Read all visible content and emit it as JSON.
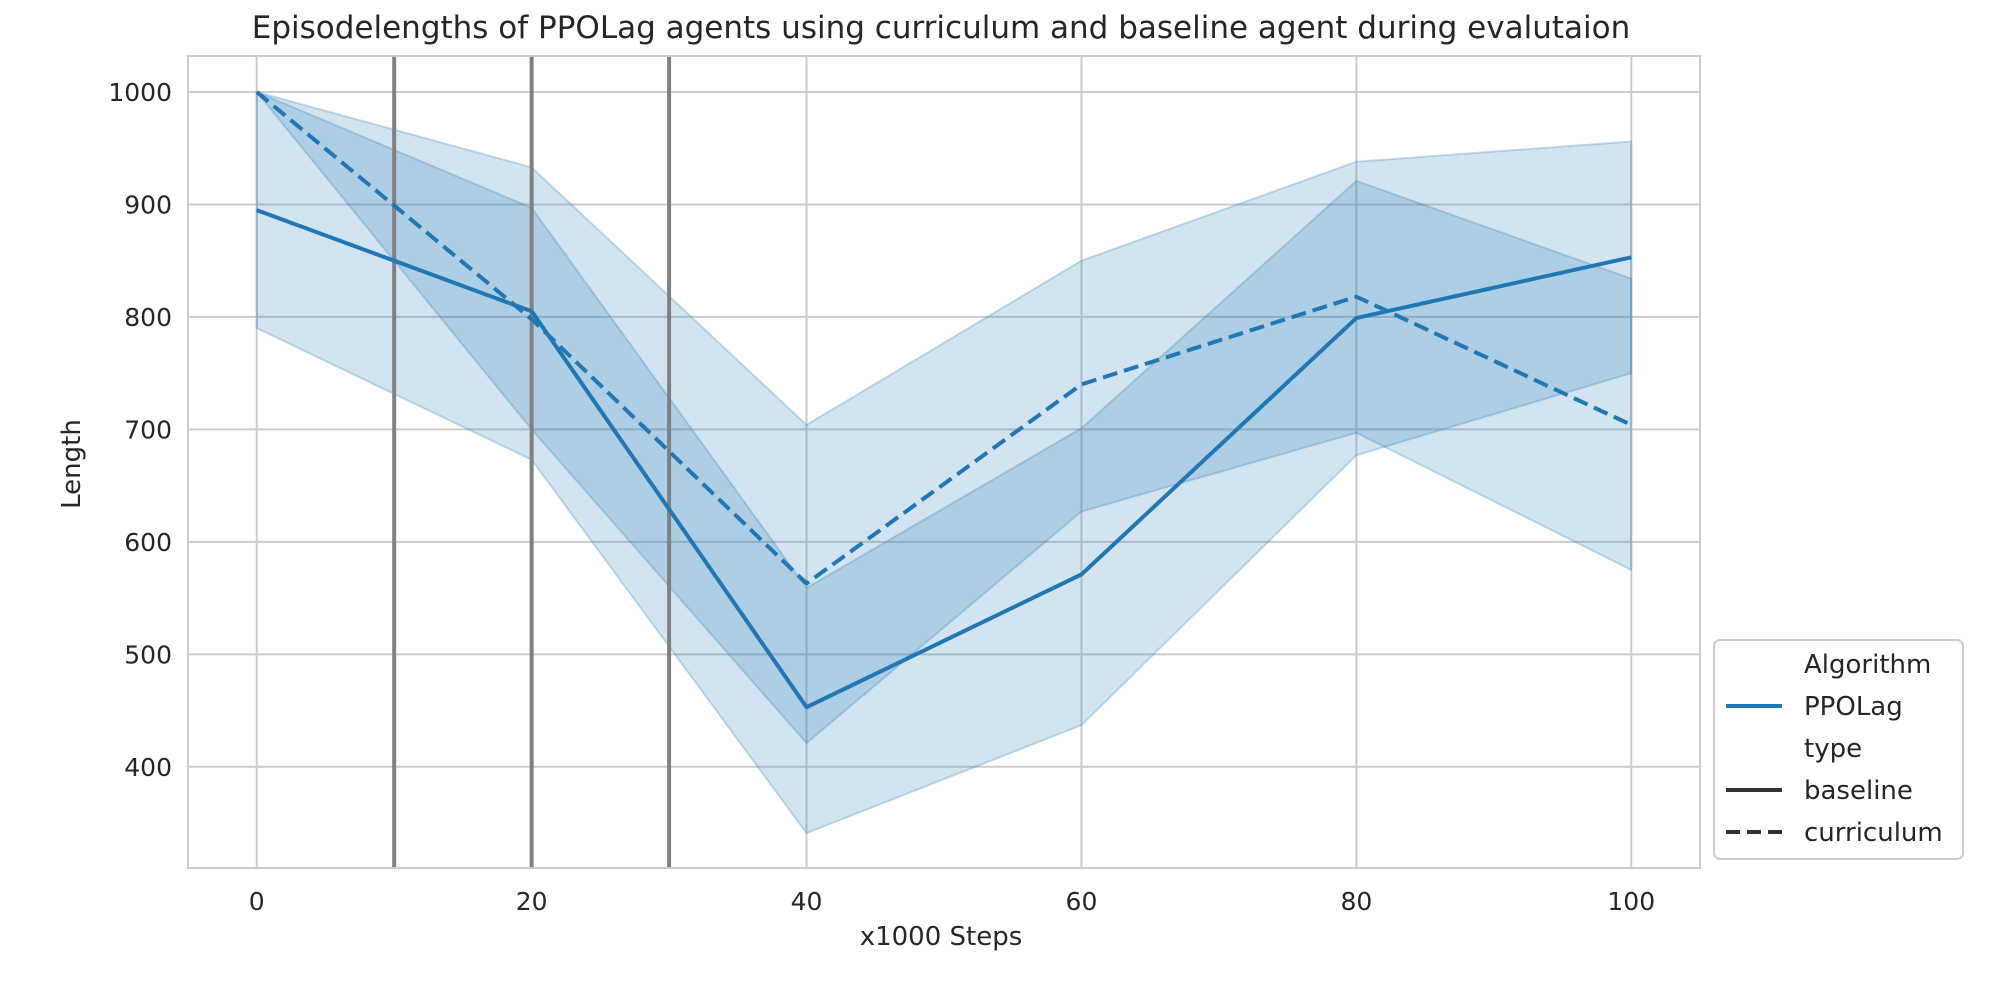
{
  "chart_data": {
    "type": "line",
    "title": "Episodelengths of PPOLag agents using curriculum and baseline agent during evalutaion",
    "xlabel": "x1000 Steps",
    "ylabel": "Length",
    "xlim": [
      -5,
      105
    ],
    "ylim": [
      310,
      1032
    ],
    "xticks": [
      0,
      20,
      40,
      60,
      80,
      100
    ],
    "yticks": [
      400,
      500,
      600,
      700,
      800,
      900,
      1000
    ],
    "grid": true,
    "line_color": "#1f77b4",
    "band_color": "#1f77b4",
    "vline_color": "#808080",
    "vlines": [
      10,
      20,
      30
    ],
    "series": [
      {
        "name": "baseline",
        "algorithm": "PPOLag",
        "style": "solid",
        "x": [
          0,
          20,
          40,
          60,
          80,
          100
        ],
        "y": [
          895,
          805,
          453,
          571,
          799,
          853
        ],
        "lower": [
          790,
          673,
          341,
          437,
          677,
          750
        ],
        "upper": [
          1000,
          933,
          704,
          850,
          938,
          956
        ]
      },
      {
        "name": "curriculum",
        "algorithm": "PPOLag",
        "style": "dashed",
        "x": [
          0,
          20,
          40,
          60,
          80,
          100
        ],
        "y": [
          1000,
          798,
          563,
          740,
          818,
          704
        ],
        "lower": [
          1000,
          700,
          421,
          627,
          697,
          575
        ],
        "upper": [
          1000,
          897,
          559,
          701,
          921,
          834
        ]
      }
    ],
    "legend": {
      "position": "lower-right-outside",
      "entries": [
        {
          "label": "Algorithm",
          "style": "header"
        },
        {
          "label": "PPOLag",
          "style": "color"
        },
        {
          "label": "type",
          "style": "header"
        },
        {
          "label": "baseline",
          "style": "solid"
        },
        {
          "label": "curriculum",
          "style": "dashed"
        }
      ]
    }
  }
}
